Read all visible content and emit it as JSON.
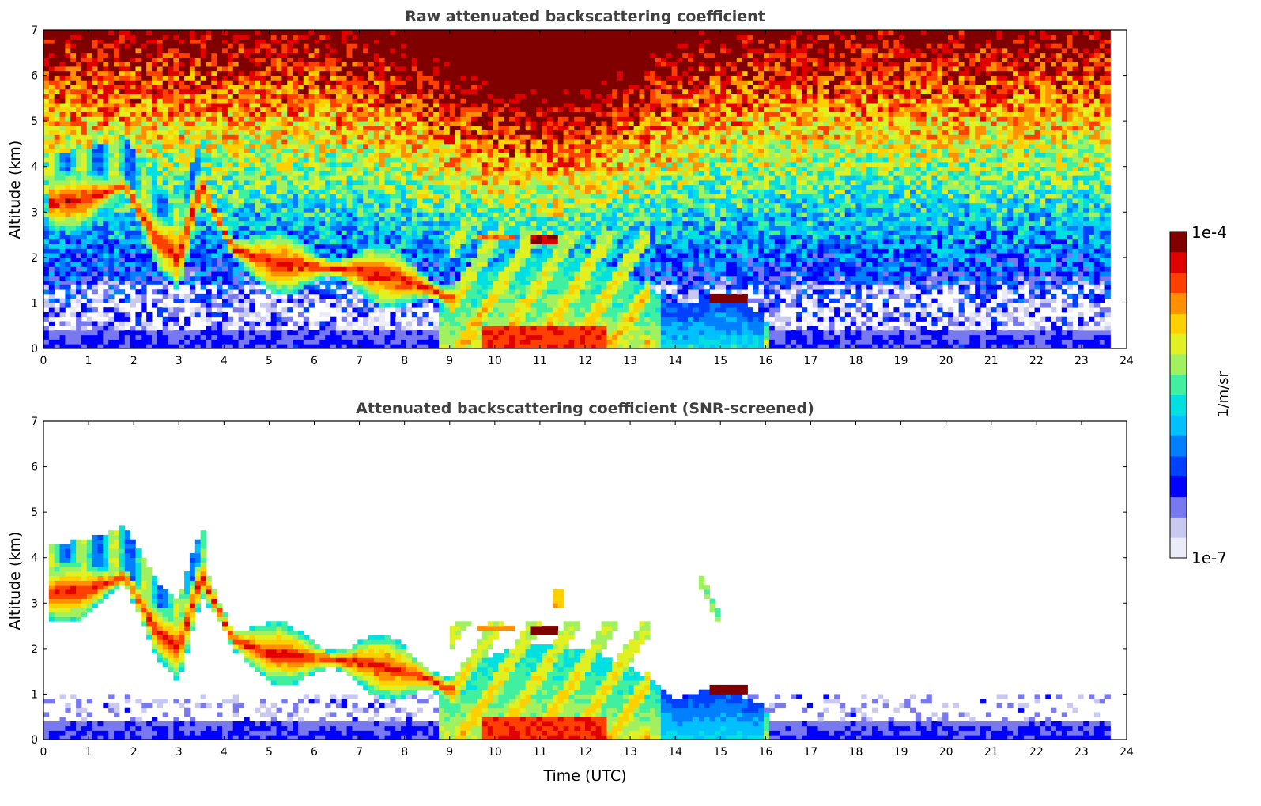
{
  "chart_data": [
    {
      "type": "heatmap",
      "title": "Raw attenuated backscattering coefficient",
      "xlabel": "",
      "ylabel": "Altitude (km)",
      "xlim": [
        0,
        24
      ],
      "ylim": [
        0,
        7
      ],
      "xticks": [
        "0",
        "1",
        "2",
        "3",
        "4",
        "5",
        "6",
        "7",
        "8",
        "9",
        "10",
        "11",
        "12",
        "13",
        "14",
        "15",
        "16",
        "17",
        "18",
        "19",
        "20",
        "21",
        "22",
        "23",
        "24"
      ],
      "yticks": [
        "0",
        "1",
        "2",
        "3",
        "4",
        "5",
        "6",
        "7"
      ],
      "data_end_time": 23.6,
      "screened": false,
      "features": [
        {
          "name": "surface layer",
          "t": [
            0,
            23.6
          ],
          "alt": [
            0,
            0.4
          ],
          "log10_value": -6.4
        },
        {
          "name": "boundary layer aerosol",
          "t": [
            8.8,
            16.0
          ],
          "alt": [
            0,
            1.2
          ],
          "log10_value": -5.5
        },
        {
          "name": "dense aerosol near ground",
          "t": [
            9.7,
            12.5
          ],
          "alt": [
            0,
            0.4
          ],
          "log10_value": -4.4
        },
        {
          "name": "descending elevated aerosol layer",
          "t": [
            0.1,
            9.0
          ],
          "alt": [
            1.0,
            4.7
          ],
          "log10_value": -4.6
        },
        {
          "name": "thin layer",
          "t": [
            9.6,
            10.4
          ],
          "alt": [
            2.35,
            2.5
          ],
          "log10_value": -4.5
        },
        {
          "name": "thin cloud",
          "t": [
            10.8,
            11.4
          ],
          "alt": [
            2.3,
            2.5
          ],
          "log10_value": -4.1
        },
        {
          "name": "cloud",
          "t": [
            14.8,
            15.6
          ],
          "alt": [
            1.05,
            1.15
          ],
          "log10_value": -4.0
        },
        {
          "name": "falling streak",
          "t": [
            14.6,
            15.0
          ],
          "alt": [
            2.7,
            3.6
          ],
          "log10_value": -5.4
        },
        {
          "name": "noise background upper",
          "t": [
            0,
            23.6
          ],
          "alt": [
            4.0,
            7.0
          ],
          "log10_value": -5.3
        }
      ]
    },
    {
      "type": "heatmap",
      "title": "Attenuated backscattering coefficient (SNR-screened)",
      "xlabel": "Time (UTC)",
      "ylabel": "Altitude (km)",
      "xlim": [
        0,
        24
      ],
      "ylim": [
        0,
        7
      ],
      "xticks": [
        "0",
        "1",
        "2",
        "3",
        "4",
        "5",
        "6",
        "7",
        "8",
        "9",
        "10",
        "11",
        "12",
        "13",
        "14",
        "15",
        "16",
        "17",
        "18",
        "19",
        "20",
        "21",
        "22",
        "23",
        "24"
      ],
      "yticks": [
        "0",
        "1",
        "2",
        "3",
        "4",
        "5",
        "6",
        "7"
      ],
      "data_end_time": 23.6,
      "screened": true
    }
  ],
  "colorbar": {
    "max_label": "1e-4",
    "min_label": "1e-7",
    "unit_label": "1/m/sr",
    "log10_min": -7,
    "log10_max": -4,
    "colors": [
      "#ececf8",
      "#c8c8f0",
      "#7878f0",
      "#0000ff",
      "#0040ff",
      "#0080ff",
      "#00c0ff",
      "#00e0e0",
      "#40f0a0",
      "#a0f060",
      "#e0f020",
      "#ffd000",
      "#ff9000",
      "#ff4000",
      "#e00000",
      "#800000"
    ]
  }
}
